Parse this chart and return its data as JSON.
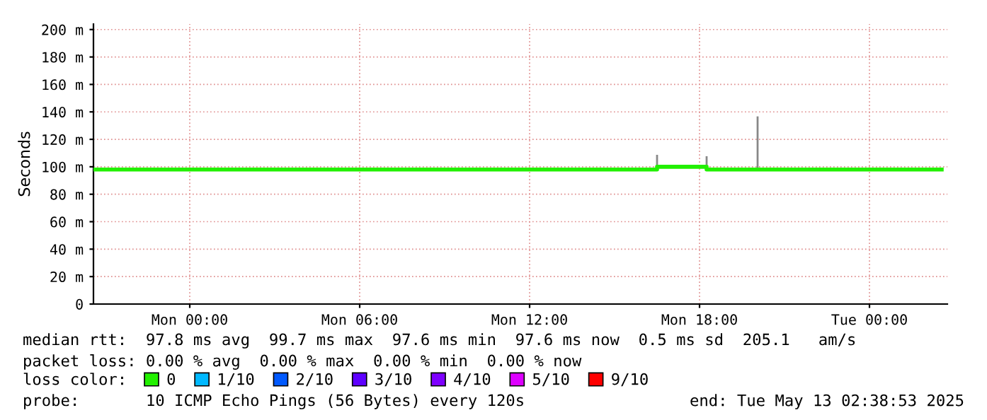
{
  "chart_data": {
    "type": "step",
    "ylabel": "Seconds",
    "legend_title": "loss color:",
    "x": [
      "2025-05-11T20:36",
      "2025-05-12T16:30",
      "2025-05-12T18:15",
      "2025-05-13T02:33"
    ],
    "series": [
      {
        "name": "0",
        "color": "#22f000",
        "values": [
          98,
          100,
          98,
          98
        ]
      },
      {
        "type": "line",
        "color": "#888888",
        "x": [
          "2025-05-12T16:30",
          "2025-05-12T16:30"
        ],
        "values": [
          98,
          108
        ]
      },
      {
        "type": "line",
        "color": "#888888",
        "x": [
          "2025-05-12T18:15",
          "2025-05-12T18:15"
        ],
        "values": [
          100,
          107
        ]
      },
      {
        "type": "line",
        "color": "#888888",
        "x": [
          "2025-05-12T20:03",
          "2025-05-12T20:03"
        ],
        "values": [
          98,
          136
        ]
      },
      {
        "name": "1/10",
        "color": "#00b8ff",
        "values": [
          null,
          null,
          null,
          null
        ]
      },
      {
        "name": "2/10",
        "color": "#0059ff",
        "values": [
          null,
          null,
          null,
          null
        ]
      },
      {
        "name": "3/10",
        "color": "#5e00ff",
        "values": [
          null,
          null,
          null,
          null
        ]
      },
      {
        "name": "4/10",
        "color": "#7e00ff",
        "values": [
          null,
          null,
          null,
          null
        ]
      },
      {
        "name": "5/10",
        "color": "#dd00ff",
        "values": [
          null,
          null,
          null,
          null
        ]
      },
      {
        "name": "9/10",
        "color": "#ff0000",
        "values": [
          null,
          null,
          null,
          null
        ]
      }
    ],
    "xlim": [
      "2025-05-11T20:36",
      "2025-05-13T02:45"
    ],
    "xticks": [
      {
        "value": "2025-05-12T00:00",
        "label": "Mon 00:00"
      },
      {
        "value": "2025-05-12T06:00",
        "label": "Mon 06:00"
      },
      {
        "value": "2025-05-12T12:00",
        "label": "Mon 12:00"
      },
      {
        "value": "2025-05-12T18:00",
        "label": "Mon 18:00"
      },
      {
        "value": "2025-05-13T00:00",
        "label": "Tue 00:00"
      }
    ],
    "ylim": [
      0,
      204
    ],
    "yticks": [
      0,
      {
        "value": 20,
        "label": "20 m"
      },
      {
        "value": 40,
        "label": "40 m"
      },
      {
        "value": 60,
        "label": "60 m"
      },
      {
        "value": 80,
        "label": "80 m"
      },
      {
        "value": 100,
        "label": "100 m"
      },
      {
        "value": 120,
        "label": "120 m"
      },
      {
        "value": 140,
        "label": "140 m"
      },
      {
        "value": 160,
        "label": "160 m"
      },
      {
        "value": 180,
        "label": "180 m"
      },
      {
        "value": 200,
        "label": "200 m"
      }
    ],
    "grid": true,
    "legend": "bottom",
    "line_style": "solid",
    "annotations": [
      "median rtt:  97.8 ms avg  99.7 ms max  97.6 ms min  97.6 ms now  0.5 ms sd  205.1   am/s",
      "packet loss: 0.00 % avg  0.00 % max  0.00 % min  0.00 % now",
      "probe:       10 ICMP Echo Pings (56 Bytes) every 120s",
      "end: Tue May 13 02:38:53 2025"
    ]
  }
}
